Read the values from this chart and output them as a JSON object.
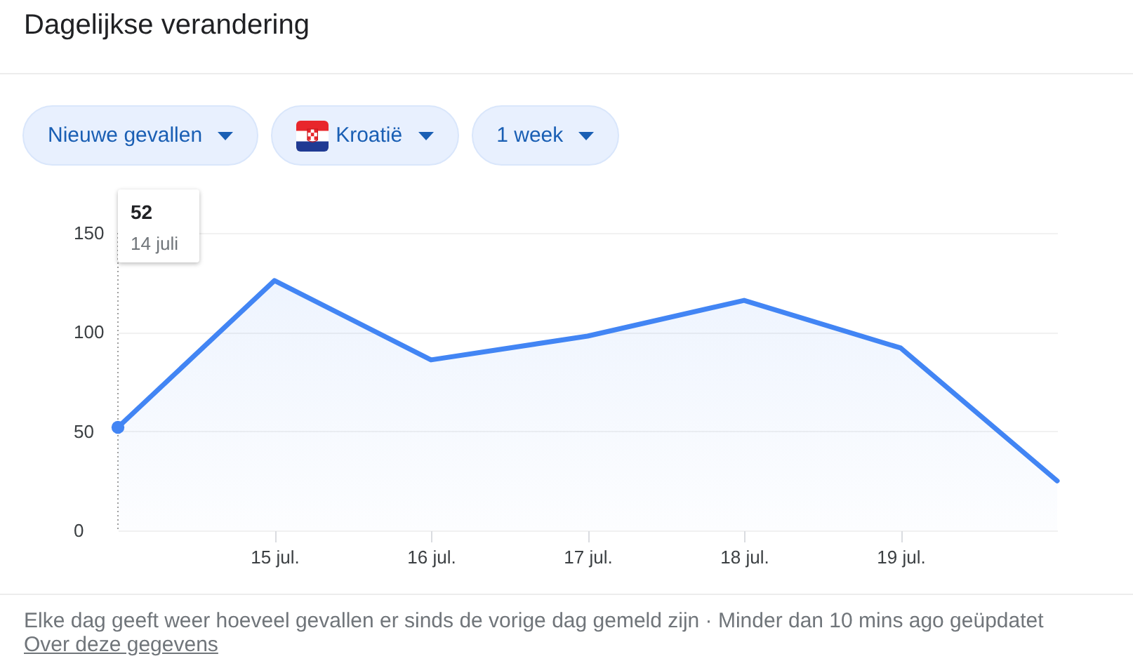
{
  "chart_data": {
    "type": "area",
    "title": "Dagelijkse verandering",
    "x": [
      "--07-14",
      "--07-15",
      "--07-16",
      "--07-17",
      "--07-18",
      "--07-19",
      "--07-20"
    ],
    "series": [
      {
        "color": "#4285f4",
        "values": [
          52,
          126,
          86,
          98,
          116,
          92,
          25
        ]
      },
      {
        "type": "scatter",
        "color": "#4285f4",
        "x": [
          "--07-14"
        ],
        "values": [
          52
        ]
      }
    ],
    "xlim": [
      "--07-14",
      "--07-20"
    ],
    "xticks": [
      {
        "value": "--07-15",
        "label": "15 jul."
      },
      {
        "value": "--07-16",
        "label": "16 jul."
      },
      {
        "value": "--07-17",
        "label": "17 jul."
      },
      {
        "value": "--07-18",
        "label": "18 jul."
      },
      {
        "value": "--07-19",
        "label": "19 jul."
      }
    ],
    "ylim": [
      0,
      150
    ],
    "yticks": [
      0,
      50,
      100,
      150
    ],
    "grid": "y",
    "ref_lines": [
      {
        "axis": "x",
        "value": "--07-14",
        "line_style": "dotted",
        "color": "#9e9e9e"
      }
    ],
    "annotations": [
      "Nieuwe gevallen",
      "Kroatië",
      "1 week",
      "52",
      "14 juli",
      "Elke dag geeft weer hoeveel gevallen er sinds de vorige dag gemeld zijn · Minder dan 10 mins ago geüpdatet",
      "Over deze gegevens"
    ]
  }
}
